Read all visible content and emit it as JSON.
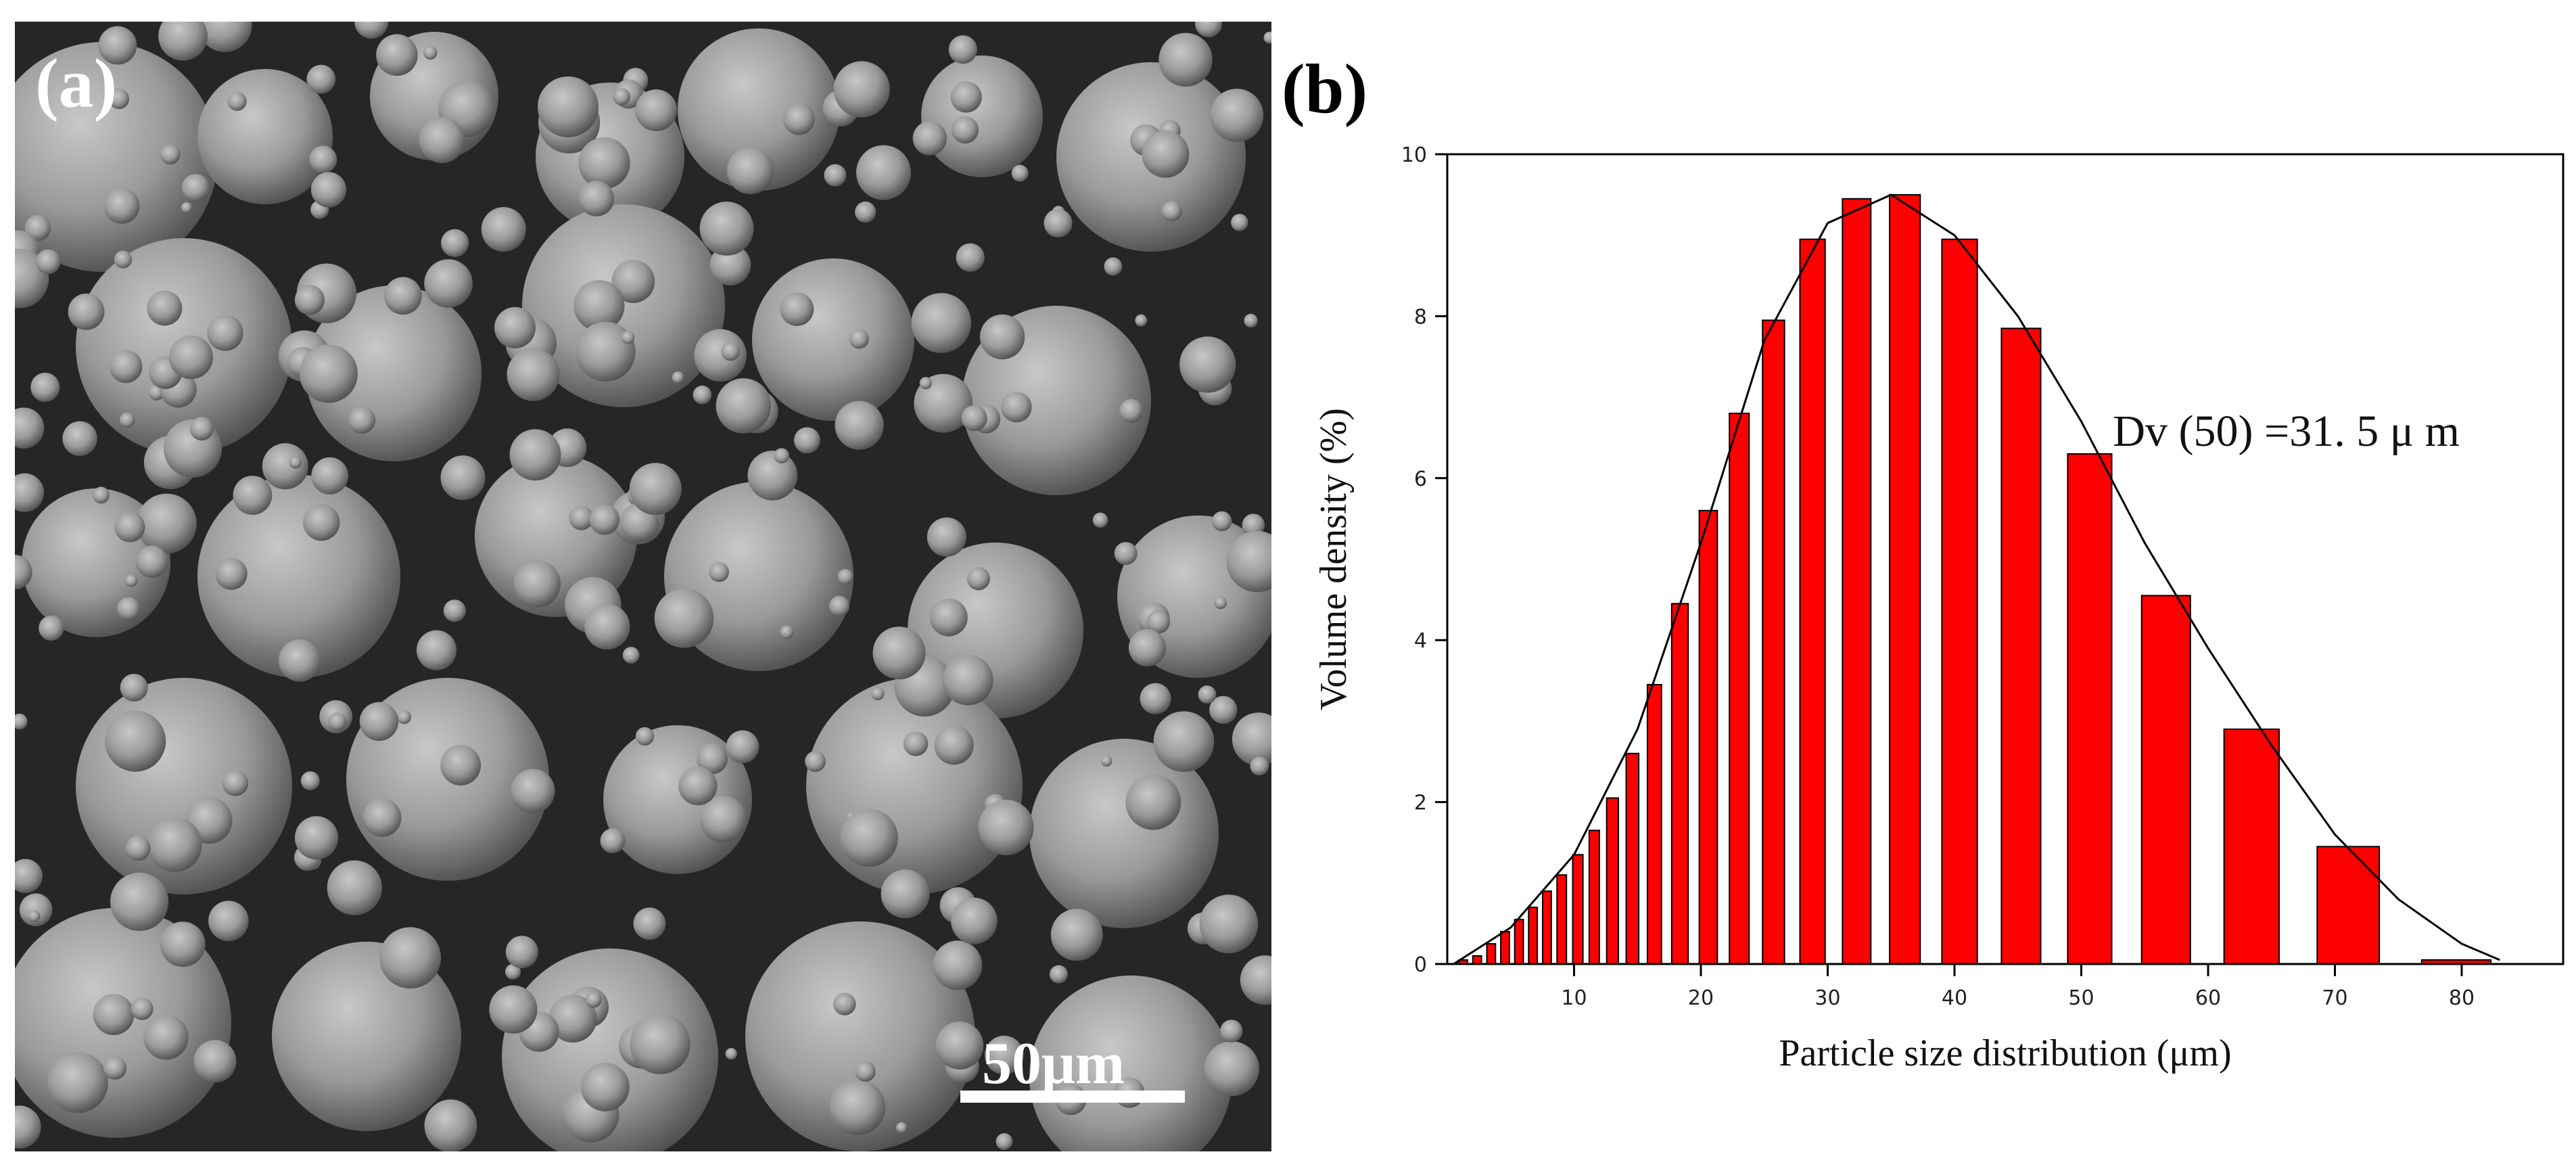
{
  "panel_a": {
    "label": "(a)",
    "scale_bar_label": "50μm"
  },
  "panel_b": {
    "label": "(b)"
  },
  "chart_data": {
    "type": "bar",
    "bar_color": "#ff0000",
    "bar_edge_color": "#000000",
    "curve_color": "#000000",
    "xlabel": "Particle size distribution (μm)",
    "ylabel": "Volume density (%)",
    "xlim": [
      0,
      88
    ],
    "ylim": [
      0,
      10
    ],
    "x_ticks": [
      10,
      20,
      30,
      40,
      50,
      60,
      70,
      80
    ],
    "y_ticks": [
      0,
      2,
      4,
      6,
      8,
      10
    ],
    "annotation": "Dv (50) =31. 5 μ m",
    "grid": false,
    "legend": "none",
    "bins": [
      {
        "x0": 0.5,
        "x1": 1.6,
        "value": 0.05
      },
      {
        "x0": 1.6,
        "x1": 2.7,
        "value": 0.1
      },
      {
        "x0": 2.7,
        "x1": 3.8,
        "value": 0.25
      },
      {
        "x0": 3.8,
        "x1": 4.9,
        "value": 0.4
      },
      {
        "x0": 4.9,
        "x1": 6.0,
        "value": 0.55
      },
      {
        "x0": 6.0,
        "x1": 7.1,
        "value": 0.7
      },
      {
        "x0": 7.1,
        "x1": 8.2,
        "value": 0.9
      },
      {
        "x0": 8.2,
        "x1": 9.4,
        "value": 1.1
      },
      {
        "x0": 9.4,
        "x1": 10.7,
        "value": 1.35
      },
      {
        "x0": 10.7,
        "x1": 12.0,
        "value": 1.65
      },
      {
        "x0": 12.0,
        "x1": 13.5,
        "value": 2.05
      },
      {
        "x0": 13.5,
        "x1": 15.1,
        "value": 2.6
      },
      {
        "x0": 15.1,
        "x1": 16.9,
        "value": 3.45
      },
      {
        "x0": 16.9,
        "x1": 19.0,
        "value": 4.45
      },
      {
        "x0": 19.0,
        "x1": 21.3,
        "value": 5.6
      },
      {
        "x0": 21.3,
        "x1": 23.8,
        "value": 6.8
      },
      {
        "x0": 23.8,
        "x1": 26.6,
        "value": 7.95
      },
      {
        "x0": 26.6,
        "x1": 29.8,
        "value": 8.95
      },
      {
        "x0": 29.8,
        "x1": 33.4,
        "value": 9.45
      },
      {
        "x0": 33.4,
        "x1": 37.3,
        "value": 9.5
      },
      {
        "x0": 37.3,
        "x1": 41.8,
        "value": 8.95
      },
      {
        "x0": 41.8,
        "x1": 46.8,
        "value": 7.85
      },
      {
        "x0": 46.8,
        "x1": 52.4,
        "value": 6.3
      },
      {
        "x0": 52.4,
        "x1": 58.6,
        "value": 4.55
      },
      {
        "x0": 58.6,
        "x1": 65.6,
        "value": 2.9
      },
      {
        "x0": 65.6,
        "x1": 73.5,
        "value": 1.45
      },
      {
        "x0": 73.5,
        "x1": 82.3,
        "value": 0.05
      }
    ],
    "curve": [
      {
        "x": 0.5,
        "y": 0.0
      },
      {
        "x": 5,
        "y": 0.45
      },
      {
        "x": 10,
        "y": 1.35
      },
      {
        "x": 15,
        "y": 2.9
      },
      {
        "x": 20,
        "y": 5.2
      },
      {
        "x": 25,
        "y": 7.7
      },
      {
        "x": 30,
        "y": 9.15
      },
      {
        "x": 35,
        "y": 9.5
      },
      {
        "x": 40,
        "y": 9.0
      },
      {
        "x": 45,
        "y": 8.0
      },
      {
        "x": 50,
        "y": 6.7
      },
      {
        "x": 55,
        "y": 5.2
      },
      {
        "x": 60,
        "y": 3.9
      },
      {
        "x": 65,
        "y": 2.7
      },
      {
        "x": 70,
        "y": 1.6
      },
      {
        "x": 75,
        "y": 0.8
      },
      {
        "x": 80,
        "y": 0.25
      },
      {
        "x": 83,
        "y": 0.05
      }
    ]
  }
}
